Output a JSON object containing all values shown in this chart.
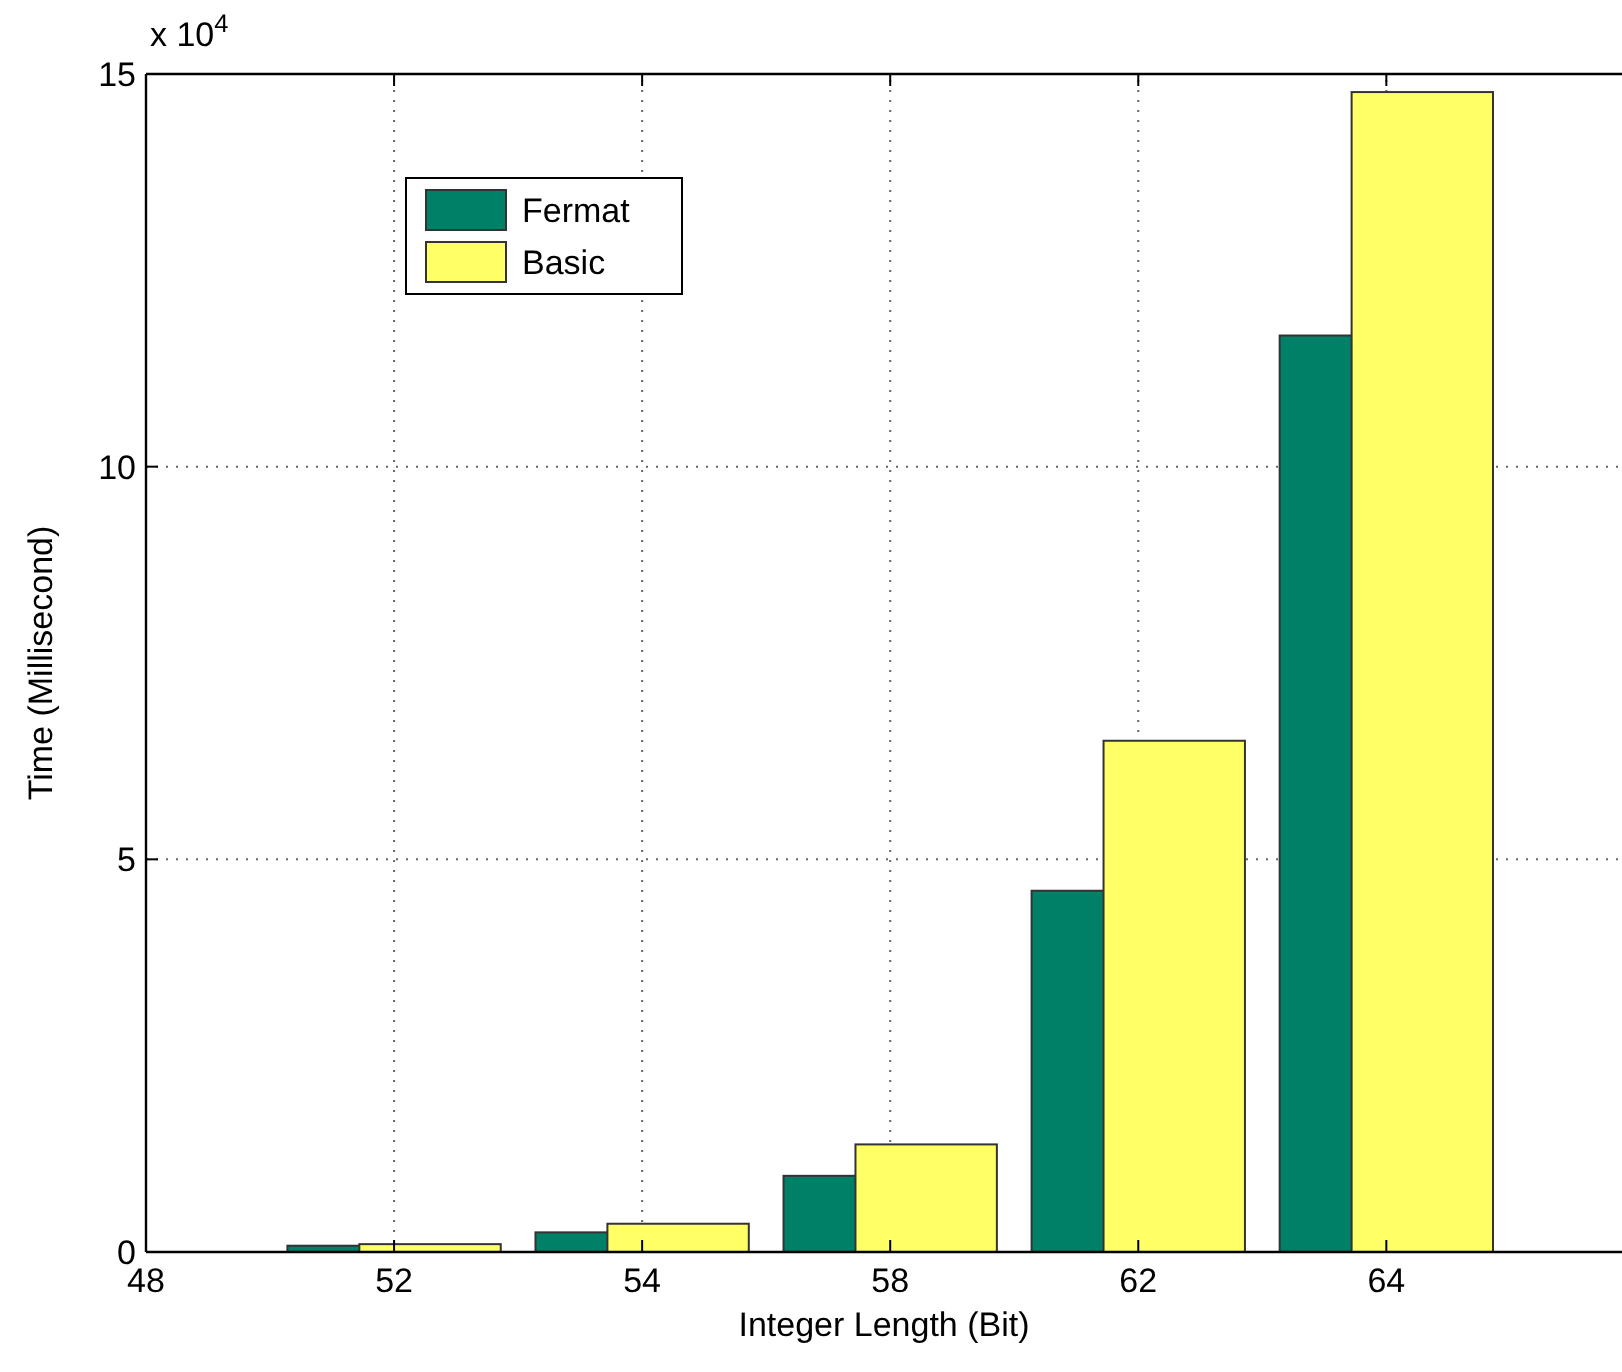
{
  "chart_data": {
    "type": "bar",
    "xlabel": "Integer Length (Bit)",
    "ylabel": "Time (Millisecond)",
    "annotations": [
      "x 10$^{4}$"
    ],
    "categories": [
      "48",
      "52",
      "54",
      "58",
      "62",
      "64"
    ],
    "series": [
      {
        "name": "Fermat",
        "color": "#008066",
        "values": [
          null,
          0.08,
          0.25,
          0.97,
          4.6,
          11.67
        ]
      },
      {
        "name": "Basic",
        "color": "#ffff66",
        "values": [
          null,
          0.1,
          0.36,
          1.37,
          6.51,
          14.77
        ]
      }
    ],
    "ylim": [
      0,
      15
    ],
    "yticks": [
      0,
      5,
      10,
      15
    ],
    "grid": true,
    "legend": "top left"
  }
}
